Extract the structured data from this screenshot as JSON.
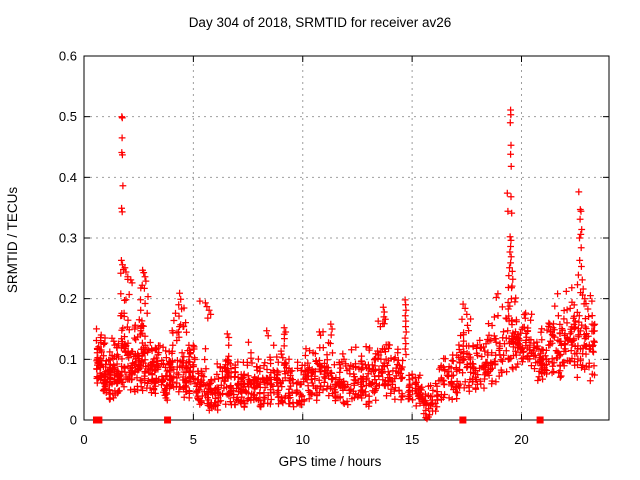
{
  "page": {
    "background": "#ffffff"
  },
  "chart_data": {
    "type": "scatter",
    "title": "Day 304 of 2018, SRMTID for receiver av26",
    "xlabel": "GPS time / hours",
    "ylabel": "SRMTID / TECUs",
    "xlim": [
      0,
      24
    ],
    "ylim": [
      0,
      0.6
    ],
    "xticks": [
      {
        "v": 0,
        "label": "0"
      },
      {
        "v": 5,
        "label": "5"
      },
      {
        "v": 10,
        "label": "10"
      },
      {
        "v": 15,
        "label": "15"
      },
      {
        "v": 20,
        "label": "20"
      }
    ],
    "yticks": [
      {
        "v": 0,
        "label": "0"
      },
      {
        "v": 0.1,
        "label": "0.1"
      },
      {
        "v": 0.2,
        "label": "0.2"
      },
      {
        "v": 0.3,
        "label": "0.3"
      },
      {
        "v": 0.4,
        "label": "0.4"
      },
      {
        "v": 0.5,
        "label": "0.5"
      },
      {
        "v": 0.6,
        "label": "0.6"
      }
    ],
    "grid": true,
    "legend": "none",
    "colors": {
      "points": "#ff0000",
      "flags": "#ff0000",
      "axis": "#000000",
      "grid": "#9e9e9e",
      "background": "#ffffff"
    },
    "seed": 304,
    "series": [
      {
        "name": "srmtid",
        "marker": "plus",
        "bands_format": [
          "hour_start",
          "hour_end",
          "y_min_TECU",
          "y_max_TECU",
          "n_points"
        ],
        "bands": [
          [
            0.55,
            0.85,
            0.055,
            0.17,
            40
          ],
          [
            0.85,
            1.25,
            0.03,
            0.145,
            48
          ],
          [
            1.25,
            1.65,
            0.035,
            0.135,
            45
          ],
          [
            1.65,
            2.1,
            0.04,
            0.24,
            55
          ],
          [
            2.1,
            2.55,
            0.04,
            0.175,
            48
          ],
          [
            2.55,
            3.0,
            0.04,
            0.23,
            50
          ],
          [
            3.0,
            3.5,
            0.035,
            0.155,
            48
          ],
          [
            3.5,
            4.0,
            0.03,
            0.125,
            45
          ],
          [
            4.0,
            4.6,
            0.035,
            0.2,
            50
          ],
          [
            4.6,
            5.1,
            0.035,
            0.165,
            50
          ],
          [
            5.1,
            5.6,
            0.02,
            0.125,
            40
          ],
          [
            5.6,
            6.2,
            0.015,
            0.095,
            45
          ],
          [
            6.2,
            6.8,
            0.02,
            0.135,
            48
          ],
          [
            6.8,
            7.4,
            0.02,
            0.105,
            48
          ],
          [
            7.4,
            8.0,
            0.025,
            0.13,
            48
          ],
          [
            8.0,
            8.6,
            0.02,
            0.12,
            48
          ],
          [
            8.6,
            9.3,
            0.025,
            0.15,
            50
          ],
          [
            9.3,
            10.0,
            0.02,
            0.115,
            48
          ],
          [
            10.0,
            10.7,
            0.03,
            0.125,
            48
          ],
          [
            10.7,
            11.4,
            0.03,
            0.155,
            48
          ],
          [
            11.4,
            12.1,
            0.025,
            0.115,
            48
          ],
          [
            12.1,
            12.8,
            0.03,
            0.125,
            48
          ],
          [
            12.8,
            13.4,
            0.02,
            0.135,
            45
          ],
          [
            13.4,
            14.0,
            0.035,
            0.17,
            42
          ],
          [
            14.0,
            14.6,
            0.03,
            0.12,
            38
          ],
          [
            14.8,
            15.4,
            0.02,
            0.09,
            40
          ],
          [
            15.4,
            16.2,
            0.008,
            0.075,
            42
          ],
          [
            16.2,
            17.1,
            0.03,
            0.12,
            48
          ],
          [
            17.1,
            17.7,
            0.045,
            0.175,
            45
          ],
          [
            17.7,
            18.4,
            0.05,
            0.15,
            48
          ],
          [
            18.4,
            19.2,
            0.055,
            0.2,
            50
          ],
          [
            19.2,
            19.8,
            0.07,
            0.24,
            48
          ],
          [
            19.8,
            20.5,
            0.075,
            0.19,
            48
          ],
          [
            20.5,
            21.2,
            0.065,
            0.16,
            48
          ],
          [
            21.2,
            21.9,
            0.07,
            0.2,
            48
          ],
          [
            21.9,
            22.5,
            0.08,
            0.225,
            45
          ],
          [
            22.5,
            23.0,
            0.07,
            0.22,
            40
          ],
          [
            23.0,
            23.38,
            0.06,
            0.2,
            25
          ]
        ],
        "outliers_format": [
          "hour",
          "TECU"
        ],
        "outliers": [
          [
            1.73,
            0.5
          ],
          [
            1.75,
            0.498
          ],
          [
            1.74,
            0.465
          ],
          [
            1.73,
            0.441
          ],
          [
            1.755,
            0.437
          ],
          [
            1.78,
            0.386
          ],
          [
            1.72,
            0.349
          ],
          [
            1.745,
            0.343
          ],
          [
            1.71,
            0.263
          ],
          [
            1.76,
            0.256
          ],
          [
            1.8,
            0.248
          ],
          [
            1.68,
            0.242
          ],
          [
            1.87,
            0.251
          ],
          [
            1.92,
            0.244
          ],
          [
            2.0,
            0.236
          ],
          [
            2.14,
            0.231
          ],
          [
            2.2,
            0.226
          ],
          [
            2.68,
            0.247
          ],
          [
            2.73,
            0.243
          ],
          [
            2.79,
            0.236
          ],
          [
            2.83,
            0.229
          ],
          [
            2.66,
            0.222
          ],
          [
            2.76,
            0.217
          ],
          [
            4.37,
            0.209
          ],
          [
            4.42,
            0.199
          ],
          [
            4.33,
            0.19
          ],
          [
            4.46,
            0.183
          ],
          [
            5.3,
            0.196
          ],
          [
            5.55,
            0.193
          ],
          [
            5.62,
            0.187
          ],
          [
            5.72,
            0.181
          ],
          [
            5.79,
            0.174
          ],
          [
            5.66,
            0.168
          ],
          [
            6.55,
            0.142
          ],
          [
            6.62,
            0.136
          ],
          [
            7.52,
            0.128
          ],
          [
            8.35,
            0.147
          ],
          [
            8.42,
            0.139
          ],
          [
            9.15,
            0.152
          ],
          [
            9.22,
            0.145
          ],
          [
            11.28,
            0.158
          ],
          [
            11.34,
            0.15
          ],
          [
            13.45,
            0.163
          ],
          [
            13.55,
            0.154
          ],
          [
            13.68,
            0.186
          ],
          [
            13.73,
            0.178
          ],
          [
            13.71,
            0.17
          ],
          [
            13.66,
            0.159
          ],
          [
            13.78,
            0.166
          ],
          [
            14.68,
            0.198
          ],
          [
            14.7,
            0.19
          ],
          [
            14.72,
            0.181
          ],
          [
            14.69,
            0.172
          ],
          [
            14.71,
            0.163
          ],
          [
            14.7,
            0.154
          ],
          [
            14.73,
            0.145
          ],
          [
            14.68,
            0.135
          ],
          [
            14.71,
            0.126
          ],
          [
            14.69,
            0.117
          ],
          [
            14.72,
            0.108
          ],
          [
            15.62,
            0.004
          ],
          [
            15.68,
            0.002
          ],
          [
            15.75,
            0.005
          ],
          [
            17.33,
            0.191
          ],
          [
            17.42,
            0.184
          ],
          [
            17.5,
            0.174
          ],
          [
            17.28,
            0.166
          ],
          [
            18.92,
            0.208
          ],
          [
            18.85,
            0.202
          ],
          [
            19.5,
            0.511
          ],
          [
            19.51,
            0.503
          ],
          [
            19.49,
            0.49
          ],
          [
            19.52,
            0.453
          ],
          [
            19.5,
            0.438
          ],
          [
            19.53,
            0.418
          ],
          [
            19.35,
            0.374
          ],
          [
            19.52,
            0.368
          ],
          [
            19.38,
            0.344
          ],
          [
            19.55,
            0.341
          ],
          [
            19.48,
            0.302
          ],
          [
            19.52,
            0.296
          ],
          [
            19.5,
            0.286
          ],
          [
            19.47,
            0.277
          ],
          [
            19.53,
            0.269
          ],
          [
            19.5,
            0.259
          ],
          [
            19.45,
            0.251
          ],
          [
            19.58,
            0.245
          ],
          [
            19.42,
            0.238
          ],
          [
            19.6,
            0.232
          ],
          [
            21.65,
            0.208
          ],
          [
            22.05,
            0.212
          ],
          [
            22.3,
            0.218
          ],
          [
            22.62,
            0.376
          ],
          [
            22.69,
            0.347
          ],
          [
            22.72,
            0.344
          ],
          [
            22.68,
            0.331
          ],
          [
            22.75,
            0.314
          ],
          [
            22.71,
            0.306
          ],
          [
            22.65,
            0.3
          ],
          [
            22.73,
            0.284
          ],
          [
            22.66,
            0.263
          ],
          [
            22.74,
            0.253
          ],
          [
            22.6,
            0.239
          ],
          [
            22.78,
            0.231
          ],
          [
            22.56,
            0.223
          ],
          [
            22.82,
            0.216
          ],
          [
            22.7,
            0.21
          ],
          [
            23.15,
            0.205
          ],
          [
            23.22,
            0.196
          ]
        ]
      },
      {
        "name": "baseline-flags",
        "marker": "square",
        "points_format": [
          "hour",
          "TECU"
        ],
        "points": [
          [
            0.57,
            0
          ],
          [
            0.68,
            0
          ],
          [
            3.82,
            0
          ],
          [
            17.32,
            0
          ],
          [
            20.85,
            0
          ]
        ]
      }
    ]
  }
}
